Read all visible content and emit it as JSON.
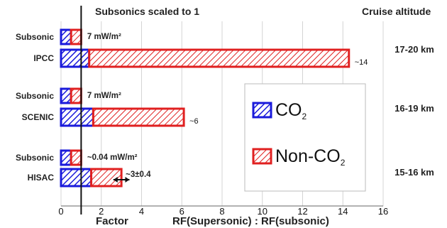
{
  "chart_data": {
    "type": "bar",
    "orientation": "horizontal",
    "title": "Subsonics scaled to 1",
    "right_header": "Cruise altitude",
    "xlabel_left": "Factor",
    "xlabel": "RF(Supersonic) : RF(subsonic)",
    "xlim": [
      0,
      16
    ],
    "x_ticks": [
      "0",
      "2",
      "4",
      "6",
      "8",
      "10",
      "12",
      "14",
      "16"
    ],
    "grid": "vertical",
    "reference_line_x": 1,
    "legend": {
      "placement": "center-right",
      "entries": [
        {
          "label": "CO",
          "subscript": "2",
          "color": "#1a1adb",
          "pattern": "hatch"
        },
        {
          "label": "Non-CO",
          "subscript": "2",
          "color": "#e02020",
          "pattern": "hatch"
        }
      ]
    },
    "groups": [
      {
        "name": "IPCC",
        "altitude": "17-20 km",
        "subsonic": {
          "label": "Subsonic",
          "co2": 0.5,
          "nonco2": 0.5,
          "annotation": "7 mW/m²"
        },
        "supersonic": {
          "label": "IPCC",
          "co2": 1.4,
          "nonco2": 12.9,
          "annotation": "~14"
        }
      },
      {
        "name": "SCENIC",
        "altitude": "16-19 km",
        "subsonic": {
          "label": "Subsonic",
          "co2": 0.5,
          "nonco2": 0.5,
          "annotation": "7 mW/m²"
        },
        "supersonic": {
          "label": "SCENIC",
          "co2": 1.6,
          "nonco2": 4.5,
          "annotation": "~6"
        }
      },
      {
        "name": "HISAC",
        "altitude": "15-16 km",
        "subsonic": {
          "label": "Subsonic",
          "co2": 0.5,
          "nonco2": 0.5,
          "annotation": "~0.04 mW/m²"
        },
        "supersonic": {
          "label": "HISAC",
          "co2": 1.5,
          "nonco2": 1.5,
          "annotation": "~3±0.4",
          "error": 0.4
        }
      }
    ]
  }
}
